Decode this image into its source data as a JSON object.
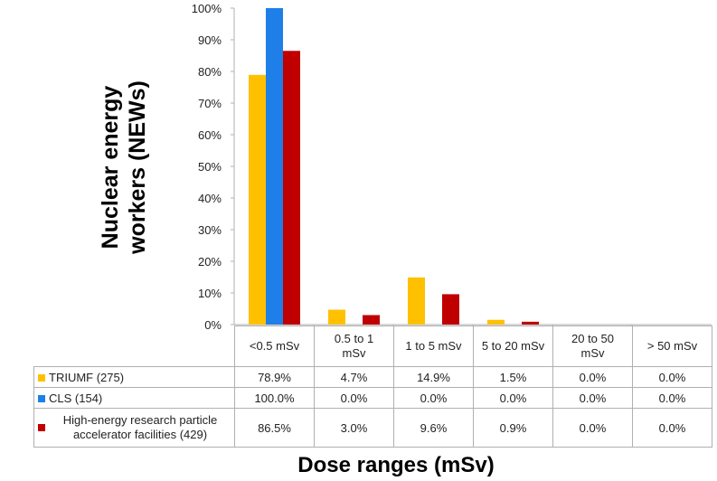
{
  "chart_data": {
    "type": "bar",
    "ylabel_lines": [
      "Nuclear energy",
      "workers (NEWs)"
    ],
    "xlabel": "Dose ranges (mSv)",
    "ylim": [
      0,
      100
    ],
    "y_ticks": [
      "0%",
      "10%",
      "20%",
      "30%",
      "40%",
      "50%",
      "60%",
      "70%",
      "80%",
      "90%",
      "100%"
    ],
    "categories": [
      "<0.5 mSv",
      "0.5 to 1 mSv",
      "1 to 5 mSv",
      "5 to 20 mSv",
      "20 to 50 mSv",
      "> 50 mSv"
    ],
    "series": [
      {
        "name": "TRIUMF (275)",
        "color": "#FFC000",
        "values": [
          78.9,
          4.7,
          14.9,
          1.5,
          0.0,
          0.0
        ],
        "labels": [
          "78.9%",
          "4.7%",
          "14.9%",
          "1.5%",
          "0.0%",
          "0.0%"
        ]
      },
      {
        "name": "CLS (154)",
        "color": "#1E7FE8",
        "values": [
          100.0,
          0.0,
          0.0,
          0.0,
          0.0,
          0.0
        ],
        "labels": [
          "100.0%",
          "0.0%",
          "0.0%",
          "0.0%",
          "0.0%",
          "0.0%"
        ]
      },
      {
        "name": "High-energy research particle accelerator facilities (429)",
        "color": "#C00000",
        "values": [
          86.5,
          3.0,
          9.6,
          0.9,
          0.0,
          0.0
        ],
        "labels": [
          "86.5%",
          "3.0%",
          "9.6%",
          "0.9%",
          "0.0%",
          "0.0%"
        ]
      }
    ],
    "grid": false,
    "legend": "data table below chart"
  }
}
